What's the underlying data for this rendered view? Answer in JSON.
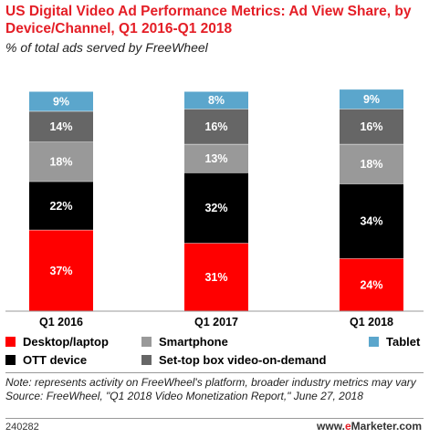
{
  "header": {
    "title": "US Digital Video Ad Performance Metrics: Ad View Share, by Device/Channel, Q1 2016-Q1 2018",
    "subtitle": "% of total ads served by FreeWheel"
  },
  "legend": [
    {
      "label": "Desktop/laptop",
      "color": "#ff0000"
    },
    {
      "label": "Smartphone",
      "color": "#999999"
    },
    {
      "label": "Tablet",
      "color": "#5ba6cc"
    },
    {
      "label": "OTT device",
      "color": "#000000"
    },
    {
      "label": "Set-top box video-on-demand",
      "color": "#666666"
    }
  ],
  "footer": {
    "note": "Note: represents activity on FreeWheel's platform, broader industry metrics may vary",
    "source": "Source: FreeWheel, \"Q1 2018 Video Monetization Report,\" June 27, 2018",
    "id": "240282",
    "brand_prefix": "www.",
    "brand_e": "e",
    "brand_suffix": "Marketer.com"
  },
  "chart_data": {
    "type": "bar",
    "stacked": true,
    "unit": "%",
    "categories": [
      "Q1 2016",
      "Q1 2017",
      "Q1 2018"
    ],
    "series": [
      {
        "name": "Desktop/laptop",
        "color": "#ff0000",
        "label_color": "#ffffff",
        "values": [
          37,
          31,
          24
        ]
      },
      {
        "name": "OTT device",
        "color": "#000000",
        "label_color": "#ffffff",
        "values": [
          22,
          32,
          34
        ]
      },
      {
        "name": "Smartphone",
        "color": "#999999",
        "label_color": "#ffffff",
        "values": [
          18,
          13,
          18
        ]
      },
      {
        "name": "Set-top box video-on-demand",
        "color": "#666666",
        "label_color": "#ffffff",
        "values": [
          14,
          16,
          16
        ]
      },
      {
        "name": "Tablet",
        "color": "#5ba6cc",
        "label_color": "#ffffff",
        "values": [
          9,
          8,
          9
        ]
      }
    ],
    "ylim": [
      0,
      100
    ]
  }
}
